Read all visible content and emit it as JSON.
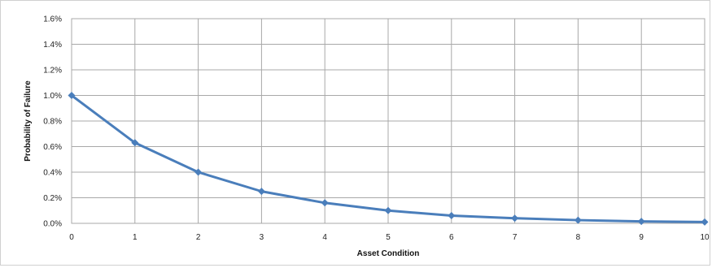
{
  "chart_data": {
    "type": "line",
    "title": "",
    "xlabel": "Asset Condition",
    "ylabel": "Probability of Failure",
    "x": [
      0,
      1,
      2,
      3,
      4,
      5,
      6,
      7,
      8,
      9,
      10
    ],
    "x_tick_labels": [
      "0",
      "1",
      "2",
      "3",
      "4",
      "5",
      "6",
      "7",
      "8",
      "9",
      "10"
    ],
    "y_tick_labels": [
      "0.0%",
      "0.2%",
      "0.4%",
      "0.6%",
      "0.8%",
      "1.0%",
      "1.2%",
      "1.4%",
      "1.6%"
    ],
    "y_ticks": [
      0,
      0.2,
      0.4,
      0.6,
      0.8,
      1.0,
      1.2,
      1.4,
      1.6
    ],
    "xlim": [
      0,
      10
    ],
    "ylim": [
      0,
      1.6
    ],
    "y_unit": "%",
    "grid": true,
    "legend": "none",
    "series": [
      {
        "values": [
          1.0,
          0.63,
          0.4,
          0.25,
          0.16,
          0.1,
          0.06,
          0.04,
          0.025,
          0.015,
          0.01
        ],
        "color": "#4a7ebb",
        "marker": "diamond"
      }
    ]
  }
}
